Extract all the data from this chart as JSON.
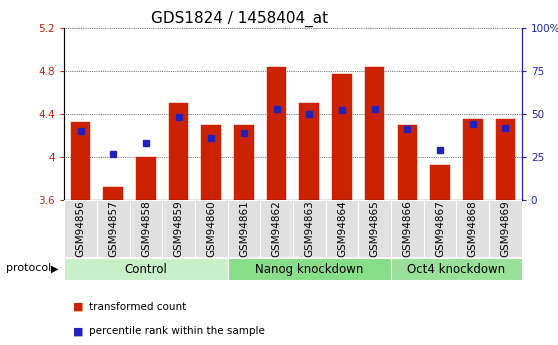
{
  "title": "GDS1824 / 1458404_at",
  "samples": [
    "GSM94856",
    "GSM94857",
    "GSM94858",
    "GSM94859",
    "GSM94860",
    "GSM94861",
    "GSM94862",
    "GSM94863",
    "GSM94864",
    "GSM94865",
    "GSM94866",
    "GSM94867",
    "GSM94868",
    "GSM94869"
  ],
  "transformed_count": [
    4.32,
    3.72,
    4.0,
    4.5,
    4.3,
    4.3,
    4.83,
    4.5,
    4.77,
    4.83,
    4.3,
    3.93,
    4.35,
    4.35
  ],
  "percentile_rank": [
    40,
    27,
    33,
    48,
    36,
    39,
    53,
    50,
    52,
    53,
    41,
    29,
    44,
    42
  ],
  "ymin": 3.6,
  "ymax": 5.2,
  "yticks_left": [
    3.6,
    4.0,
    4.4,
    4.8,
    5.2
  ],
  "yticks_right": [
    0,
    25,
    50,
    75,
    100
  ],
  "bar_color": "#cc2200",
  "dot_color": "#2222bb",
  "groups": [
    {
      "label": "Control",
      "start": 0,
      "end": 5
    },
    {
      "label": "Nanog knockdown",
      "start": 5,
      "end": 10
    },
    {
      "label": "Oct4 knockdown",
      "start": 10,
      "end": 14
    }
  ],
  "group_colors": [
    "#c8f0c8",
    "#88dd88",
    "#99e099"
  ],
  "protocol_label": "protocol",
  "legend_items": [
    "transformed count",
    "percentile rank within the sample"
  ],
  "tick_fontsize": 7.5,
  "label_fontsize": 8.5,
  "title_fontsize": 11
}
